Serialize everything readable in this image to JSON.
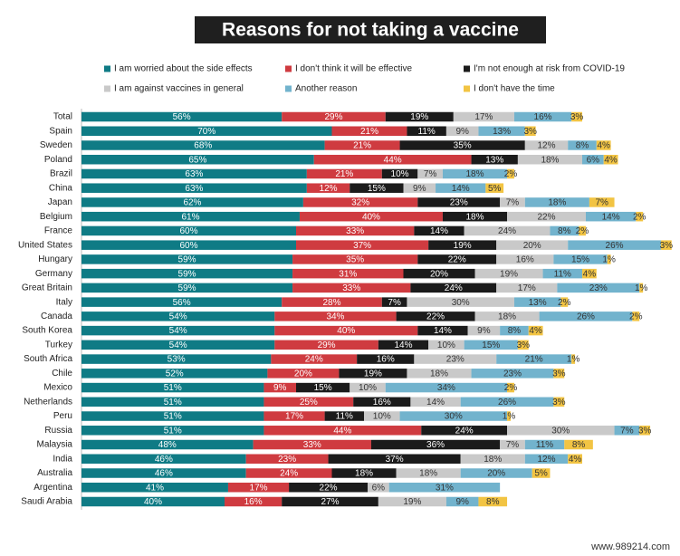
{
  "chart_data": {
    "type": "stacked-bar",
    "orientation": "horizontal",
    "title": "Reasons for not taking a vaccine",
    "watermark": "www.989214.com",
    "categories": [
      "Total",
      "Spain",
      "Sweden",
      "Poland",
      "Brazil",
      "China",
      "Japan",
      "Belgium",
      "France",
      "United States",
      "Hungary",
      "Germany",
      "Great Britain",
      "Italy",
      "Canada",
      "South Korea",
      "Turkey",
      "South Africa",
      "Chile",
      "Mexico",
      "Netherlands",
      "Peru",
      "Russia",
      "Malaysia",
      "India",
      "Australia",
      "Argentina",
      "Saudi Arabia"
    ],
    "series": [
      {
        "name": "I am worried about the side effects",
        "color": "#0f7b85",
        "values": [
          56,
          70,
          68,
          65,
          63,
          63,
          62,
          61,
          60,
          60,
          59,
          59,
          59,
          56,
          54,
          54,
          54,
          53,
          52,
          51,
          51,
          51,
          51,
          48,
          46,
          46,
          41,
          40
        ],
        "value_labels": [
          "56%",
          "70%",
          "68%",
          "65%",
          "63%",
          "63%",
          "62%",
          "61%",
          "60%",
          "60%",
          "59%",
          "59%",
          "59%",
          "56%",
          "54%",
          "54%",
          "54%",
          "53%",
          "52%",
          "51%",
          "51%",
          "51%",
          "51%",
          "48%",
          "46%",
          "46%",
          "41%",
          "40%"
        ]
      },
      {
        "name": "I don't think it will be effective",
        "color": "#cf3b40",
        "values": [
          29,
          21,
          21,
          44,
          21,
          12,
          32,
          40,
          33,
          37,
          35,
          31,
          33,
          28,
          34,
          40,
          29,
          24,
          20,
          9,
          25,
          17,
          44,
          33,
          23,
          24,
          17,
          16
        ],
        "value_labels": [
          "29%",
          "21%",
          "21%",
          "44%",
          "21%",
          "12%",
          "32%",
          "40%",
          "33%",
          "37%",
          "35%",
          "31%",
          "33%",
          "28%",
          "34%",
          "40%",
          "29%",
          "24%",
          "20%",
          "9%",
          "25%",
          "17%",
          "44%",
          "33%",
          "23%",
          "24%",
          "17%",
          "16%"
        ]
      },
      {
        "name": "I'm not enough at risk from COVID-19",
        "color": "#1b1b1b",
        "values": [
          19,
          11,
          35,
          13,
          10,
          15,
          23,
          18,
          14,
          19,
          22,
          20,
          24,
          7,
          22,
          14,
          14,
          16,
          19,
          15,
          16,
          11,
          24,
          36,
          37,
          18,
          22,
          27
        ],
        "value_labels": [
          "19%",
          "11%",
          "35%",
          "13%",
          "10%",
          "15%",
          "23%",
          "18%",
          "14%",
          "19%",
          "22%",
          "20%",
          "24%",
          "7%",
          "22%",
          "14%",
          "14%",
          "16%",
          "19%",
          "15%",
          "16%",
          "11%",
          "24%",
          "36%",
          "37%",
          "18%",
          "22%",
          "27%"
        ]
      },
      {
        "name": "I am against vaccines in general",
        "color": "#c9c9c9",
        "values": [
          17,
          9,
          12,
          18,
          7,
          9,
          7,
          22,
          24,
          20,
          16,
          19,
          17,
          30,
          18,
          9,
          10,
          23,
          18,
          10,
          14,
          10,
          30,
          7,
          18,
          18,
          6,
          19
        ],
        "value_labels": [
          "17%",
          "9%",
          "12%",
          "18%",
          "7%",
          "9%",
          "7%",
          "22%",
          "24%",
          "20%",
          "16%",
          "19%",
          "17%",
          "30%",
          "18%",
          "9%",
          "10%",
          "23%",
          "18%",
          "10%",
          "14%",
          "10%",
          "30%",
          "7%",
          "18%",
          "18%",
          "6%",
          "19%"
        ]
      },
      {
        "name": "Another reason",
        "color": "#72b3cd",
        "values": [
          16,
          13,
          8,
          6,
          18,
          14,
          18,
          14,
          8,
          26,
          15,
          11,
          23,
          13,
          26,
          8,
          15,
          21,
          23,
          34,
          26,
          30,
          7,
          11,
          12,
          20,
          31,
          9
        ],
        "value_labels": [
          "16%",
          "13%",
          "8%",
          "6%",
          "18%",
          "14%",
          "18%",
          "14%",
          "8%",
          "26%",
          "15%",
          "11%",
          "23%",
          "13%",
          "26%",
          "8%",
          "15%",
          "21%",
          "23%",
          "34%",
          "26%",
          "30%",
          "7%",
          "11%",
          "12%",
          "20%",
          "31%",
          "9%"
        ]
      },
      {
        "name": "I don't have the time",
        "color": "#f2c443",
        "values": [
          3,
          3,
          4,
          4,
          2,
          5,
          7,
          2,
          2,
          3,
          1,
          4,
          1,
          2,
          2,
          4,
          3,
          1,
          3,
          2,
          3,
          1,
          3,
          8,
          4,
          5,
          null,
          8
        ],
        "value_labels": [
          "3%",
          "3%",
          "4%",
          "4%",
          "2%",
          "5%",
          "7%",
          "2%",
          "2%",
          "3%",
          "1%",
          "4%",
          "1%",
          "2%",
          "2%",
          "4%",
          "3%",
          "1%",
          "3%",
          "2%",
          "3%",
          "1%",
          "3%",
          "8%",
          "4%",
          "5%",
          null,
          "8%"
        ]
      }
    ]
  }
}
